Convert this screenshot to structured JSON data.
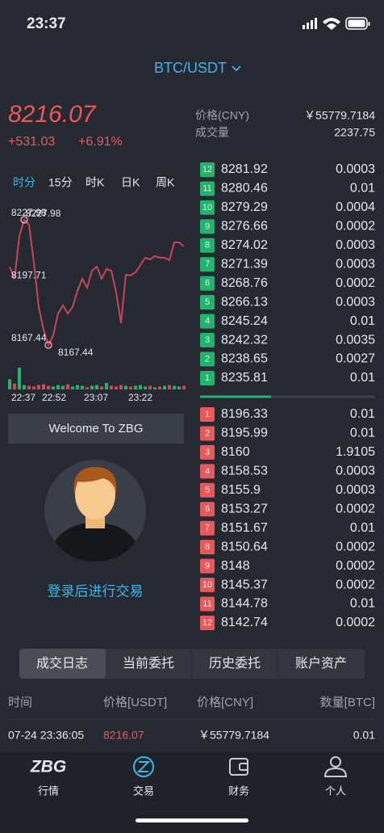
{
  "status_bar": {
    "time": "23:37"
  },
  "header": {
    "pair": "BTC/USDT"
  },
  "ticker": {
    "price": "8216.07",
    "change": "+531.03",
    "change_pct": "+6.91%"
  },
  "stats": {
    "price_cny_label": "价格(CNY)",
    "price_cny": "￥55779.7184",
    "volume_label": "成交量",
    "volume": "2237.75"
  },
  "tabs": [
    "时分",
    "15分",
    "时K",
    "日K",
    "周K"
  ],
  "chart": {
    "type": "line",
    "color": "#c4475b",
    "values": [
      8205.33,
      8199.47,
      8220.17,
      8227.98,
      8225.64,
      8207.28,
      8185.8,
      8174.86,
      8167.44,
      8172.13,
      8182.67,
      8186.58,
      8182.67,
      8185.8,
      8193.61,
      8199.47,
      8195.17,
      8203.37,
      8205.33,
      8199.47,
      8204.15,
      8203.37,
      8192.83,
      8177.99,
      8201.42,
      8201.03,
      8202.59,
      8206.11,
      8209.62,
      8208.84,
      8210.4,
      8209.62,
      8209.62,
      8208.45,
      8217.04,
      8217.04,
      8215.09
    ],
    "ylim": [
      8167.44,
      8227.98
    ],
    "yticks": [
      8167.44,
      8197.71,
      8227.98
    ],
    "x_labels": [
      "22:37",
      "22:52",
      "23:07",
      "23:22"
    ],
    "volume": [
      14,
      8,
      30,
      6,
      5,
      4,
      6,
      7,
      5,
      4,
      6,
      5,
      7,
      4,
      6,
      5,
      3,
      5,
      6,
      4,
      9,
      5,
      4,
      6,
      5,
      4,
      5,
      6,
      4,
      5,
      3,
      4,
      5,
      6,
      5,
      4,
      5
    ],
    "volume_ylim": [
      0,
      40
    ],
    "up_color": "#1fb56e",
    "down_color": "#d9474e"
  },
  "order_book": {
    "asks": [
      {
        "rank": "12",
        "price": "8281.92",
        "qty": "0.0003"
      },
      {
        "rank": "11",
        "price": "8280.46",
        "qty": "0.01"
      },
      {
        "rank": "10",
        "price": "8279.29",
        "qty": "0.0004"
      },
      {
        "rank": "9",
        "price": "8276.66",
        "qty": "0.0002"
      },
      {
        "rank": "8",
        "price": "8274.02",
        "qty": "0.0003"
      },
      {
        "rank": "7",
        "price": "8271.39",
        "qty": "0.0003"
      },
      {
        "rank": "6",
        "price": "8268.76",
        "qty": "0.0002"
      },
      {
        "rank": "5",
        "price": "8266.13",
        "qty": "0.0003"
      },
      {
        "rank": "4",
        "price": "8245.24",
        "qty": "0.01"
      },
      {
        "rank": "3",
        "price": "8242.32",
        "qty": "0.0035"
      },
      {
        "rank": "2",
        "price": "8238.65",
        "qty": "0.0027"
      },
      {
        "rank": "1",
        "price": "8235.81",
        "qty": "0.01"
      }
    ],
    "bids": [
      {
        "rank": "1",
        "price": "8196.33",
        "qty": "0.01"
      },
      {
        "rank": "2",
        "price": "8195.99",
        "qty": "0.01"
      },
      {
        "rank": "3",
        "price": "8160",
        "qty": "1.9105"
      },
      {
        "rank": "4",
        "price": "8158.53",
        "qty": "0.0003"
      },
      {
        "rank": "5",
        "price": "8155.9",
        "qty": "0.0003"
      },
      {
        "rank": "6",
        "price": "8153.27",
        "qty": "0.0002"
      },
      {
        "rank": "7",
        "price": "8151.67",
        "qty": "0.01"
      },
      {
        "rank": "8",
        "price": "8150.64",
        "qty": "0.0002"
      },
      {
        "rank": "9",
        "price": "8148",
        "qty": "0.0002"
      },
      {
        "rank": "10",
        "price": "8145.37",
        "qty": "0.0002"
      },
      {
        "rank": "11",
        "price": "8144.78",
        "qty": "0.01"
      },
      {
        "rank": "12",
        "price": "8142.74",
        "qty": "0.0002"
      }
    ]
  },
  "welcome": "Welcome To ZBG",
  "login_prompt": "登录后进行交易",
  "segments": [
    "成交日志",
    "当前委托",
    "历史委托",
    "账户资产"
  ],
  "trades": {
    "header": [
      "时间",
      "价格[USDT]",
      "价格[CNY]",
      "数量[BTC]"
    ],
    "rows": [
      [
        "07-24 23:36:05",
        "8216.07",
        "￥55779.7184",
        "0.01"
      ]
    ]
  },
  "nav": {
    "logo": "ZBG",
    "items": [
      "行情",
      "交易",
      "财务",
      "个人"
    ]
  }
}
